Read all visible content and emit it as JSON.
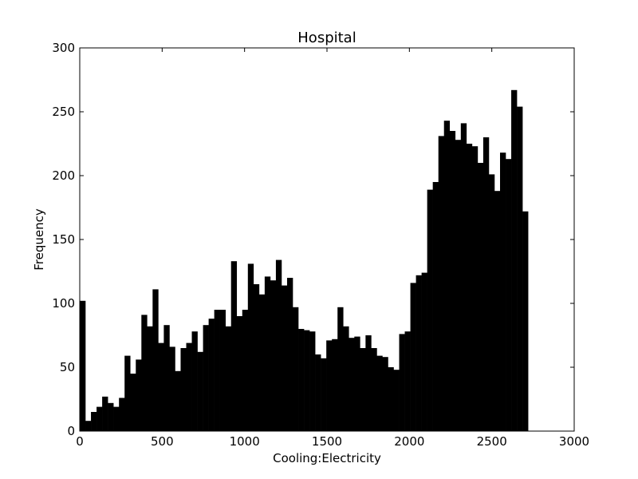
{
  "chart_data": {
    "type": "bar",
    "title": "Hospital",
    "xlabel": "Cooling:Electricity",
    "ylabel": "Frequency",
    "xlim": [
      0,
      3000
    ],
    "ylim": [
      0,
      300
    ],
    "xticks": [
      0,
      500,
      1000,
      1500,
      2000,
      2500,
      3000
    ],
    "yticks": [
      0,
      50,
      100,
      150,
      200,
      250,
      300
    ],
    "xtick_labels": [
      "0",
      "500",
      "1000",
      "1500",
      "2000",
      "2500",
      "3000"
    ],
    "ytick_labels": [
      "0",
      "50",
      "100",
      "150",
      "200",
      "250",
      "300"
    ],
    "grid": false,
    "bar_color": "#000000",
    "bin_width": 34,
    "bin_starts": [
      0,
      34,
      68,
      102,
      136,
      170,
      204,
      238,
      272,
      306,
      340,
      374,
      408,
      442,
      476,
      510,
      544,
      578,
      612,
      646,
      680,
      714,
      748,
      782,
      816,
      850,
      884,
      918,
      952,
      986,
      1020,
      1054,
      1088,
      1122,
      1156,
      1190,
      1224,
      1258,
      1292,
      1326,
      1360,
      1394,
      1428,
      1462,
      1496,
      1530,
      1564,
      1598,
      1632,
      1666,
      1700,
      1734,
      1768,
      1802,
      1836,
      1870,
      1904,
      1938,
      1972,
      2006,
      2040,
      2074,
      2108,
      2142,
      2176,
      2210,
      2244,
      2278,
      2312,
      2346,
      2380,
      2414,
      2448,
      2482,
      2516,
      2550,
      2584,
      2618,
      2652,
      2686
    ],
    "values": [
      102,
      8,
      15,
      19,
      27,
      22,
      19,
      26,
      59,
      45,
      56,
      91,
      82,
      111,
      69,
      83,
      66,
      47,
      65,
      69,
      78,
      62,
      83,
      88,
      95,
      95,
      82,
      133,
      90,
      95,
      131,
      115,
      107,
      121,
      118,
      134,
      114,
      120,
      97,
      80,
      79,
      78,
      60,
      57,
      71,
      72,
      97,
      82,
      73,
      74,
      65,
      75,
      65,
      59,
      58,
      50,
      48,
      76,
      78,
      116,
      122,
      124,
      189,
      195,
      231,
      243,
      235,
      228,
      241,
      225,
      223,
      210,
      230,
      201,
      188,
      218,
      213,
      267,
      254,
      172
    ]
  }
}
